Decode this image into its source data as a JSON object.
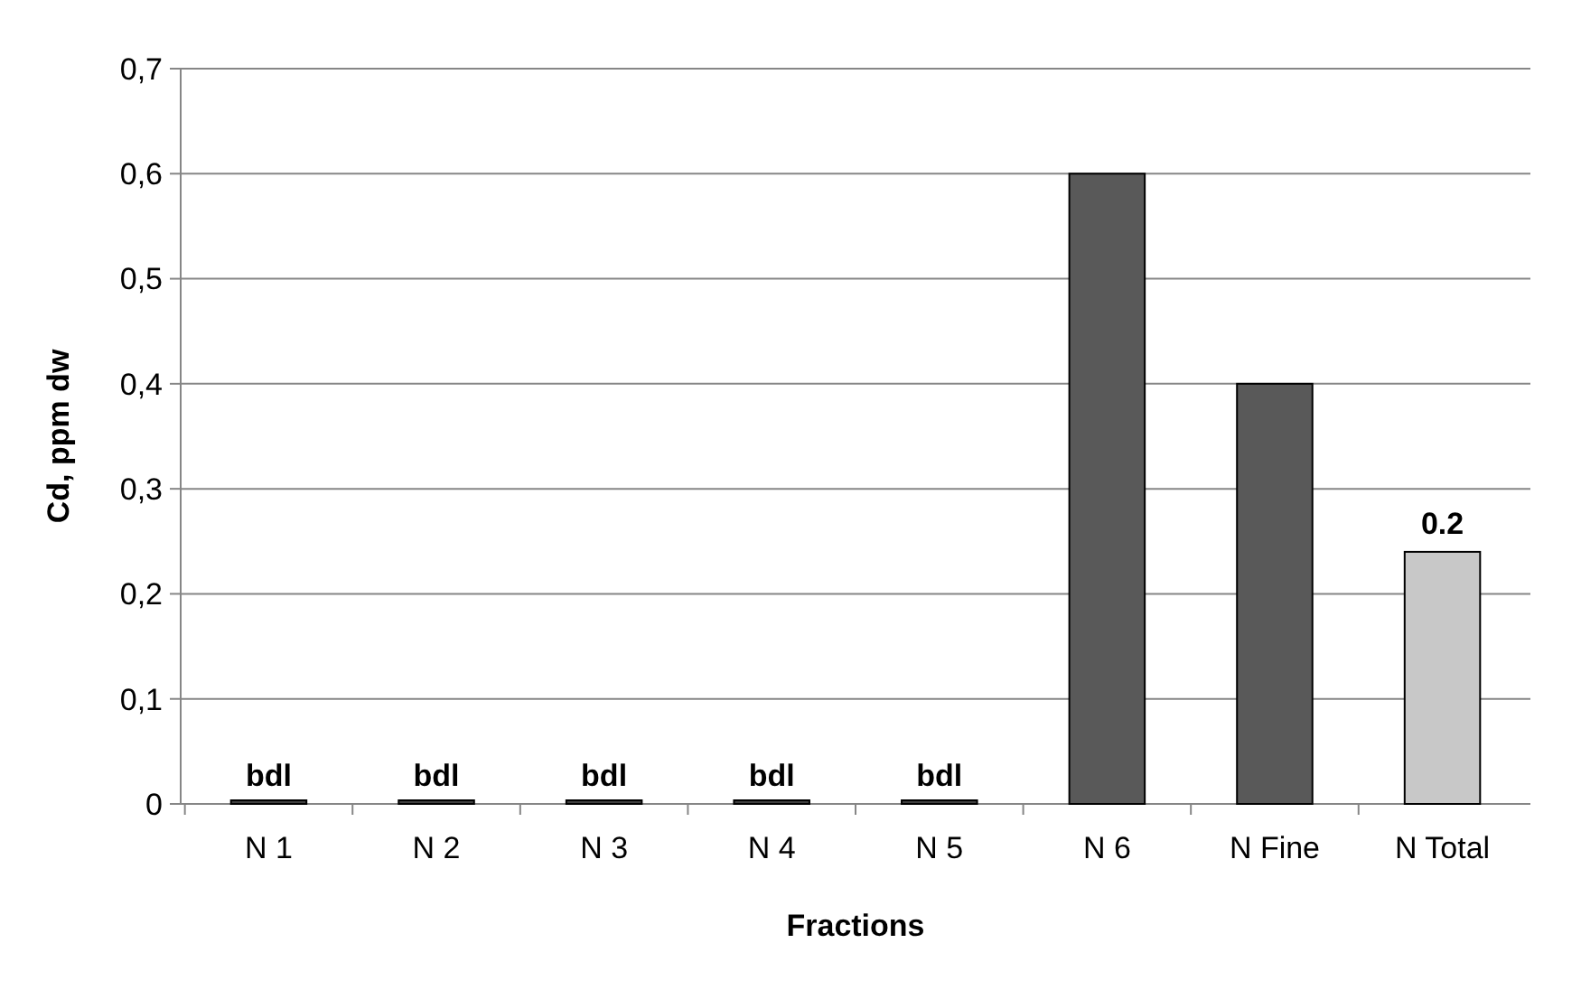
{
  "chart_data": {
    "type": "bar",
    "xlabel": "Fractions",
    "ylabel": "Cd, ppm dw",
    "categories": [
      "N 1",
      "N 2",
      "N 3",
      "N 4",
      "N 5",
      "N 6",
      "N Fine",
      "N Total"
    ],
    "values": [
      0,
      0,
      0,
      0,
      0,
      0.6,
      0.4,
      0.24
    ],
    "colors": [
      "#404040",
      "#404040",
      "#404040",
      "#404040",
      "#404040",
      "#595959",
      "#595959",
      "#c8c8c8"
    ],
    "value_labels": [
      "bdl",
      "bdl",
      "bdl",
      "bdl",
      "bdl",
      null,
      null,
      "0.2"
    ],
    "ylim": [
      0,
      0.7
    ],
    "yticks": [
      {
        "value": 0,
        "label": "0"
      },
      {
        "value": 0.1,
        "label": "0,1"
      },
      {
        "value": 0.2,
        "label": "0,2"
      },
      {
        "value": 0.3,
        "label": "0,3"
      },
      {
        "value": 0.4,
        "label": "0,4"
      },
      {
        "value": 0.5,
        "label": "0,5"
      },
      {
        "value": 0.6,
        "label": "0,6"
      },
      {
        "value": 0.7,
        "label": "0,7"
      }
    ],
    "grid": true
  }
}
